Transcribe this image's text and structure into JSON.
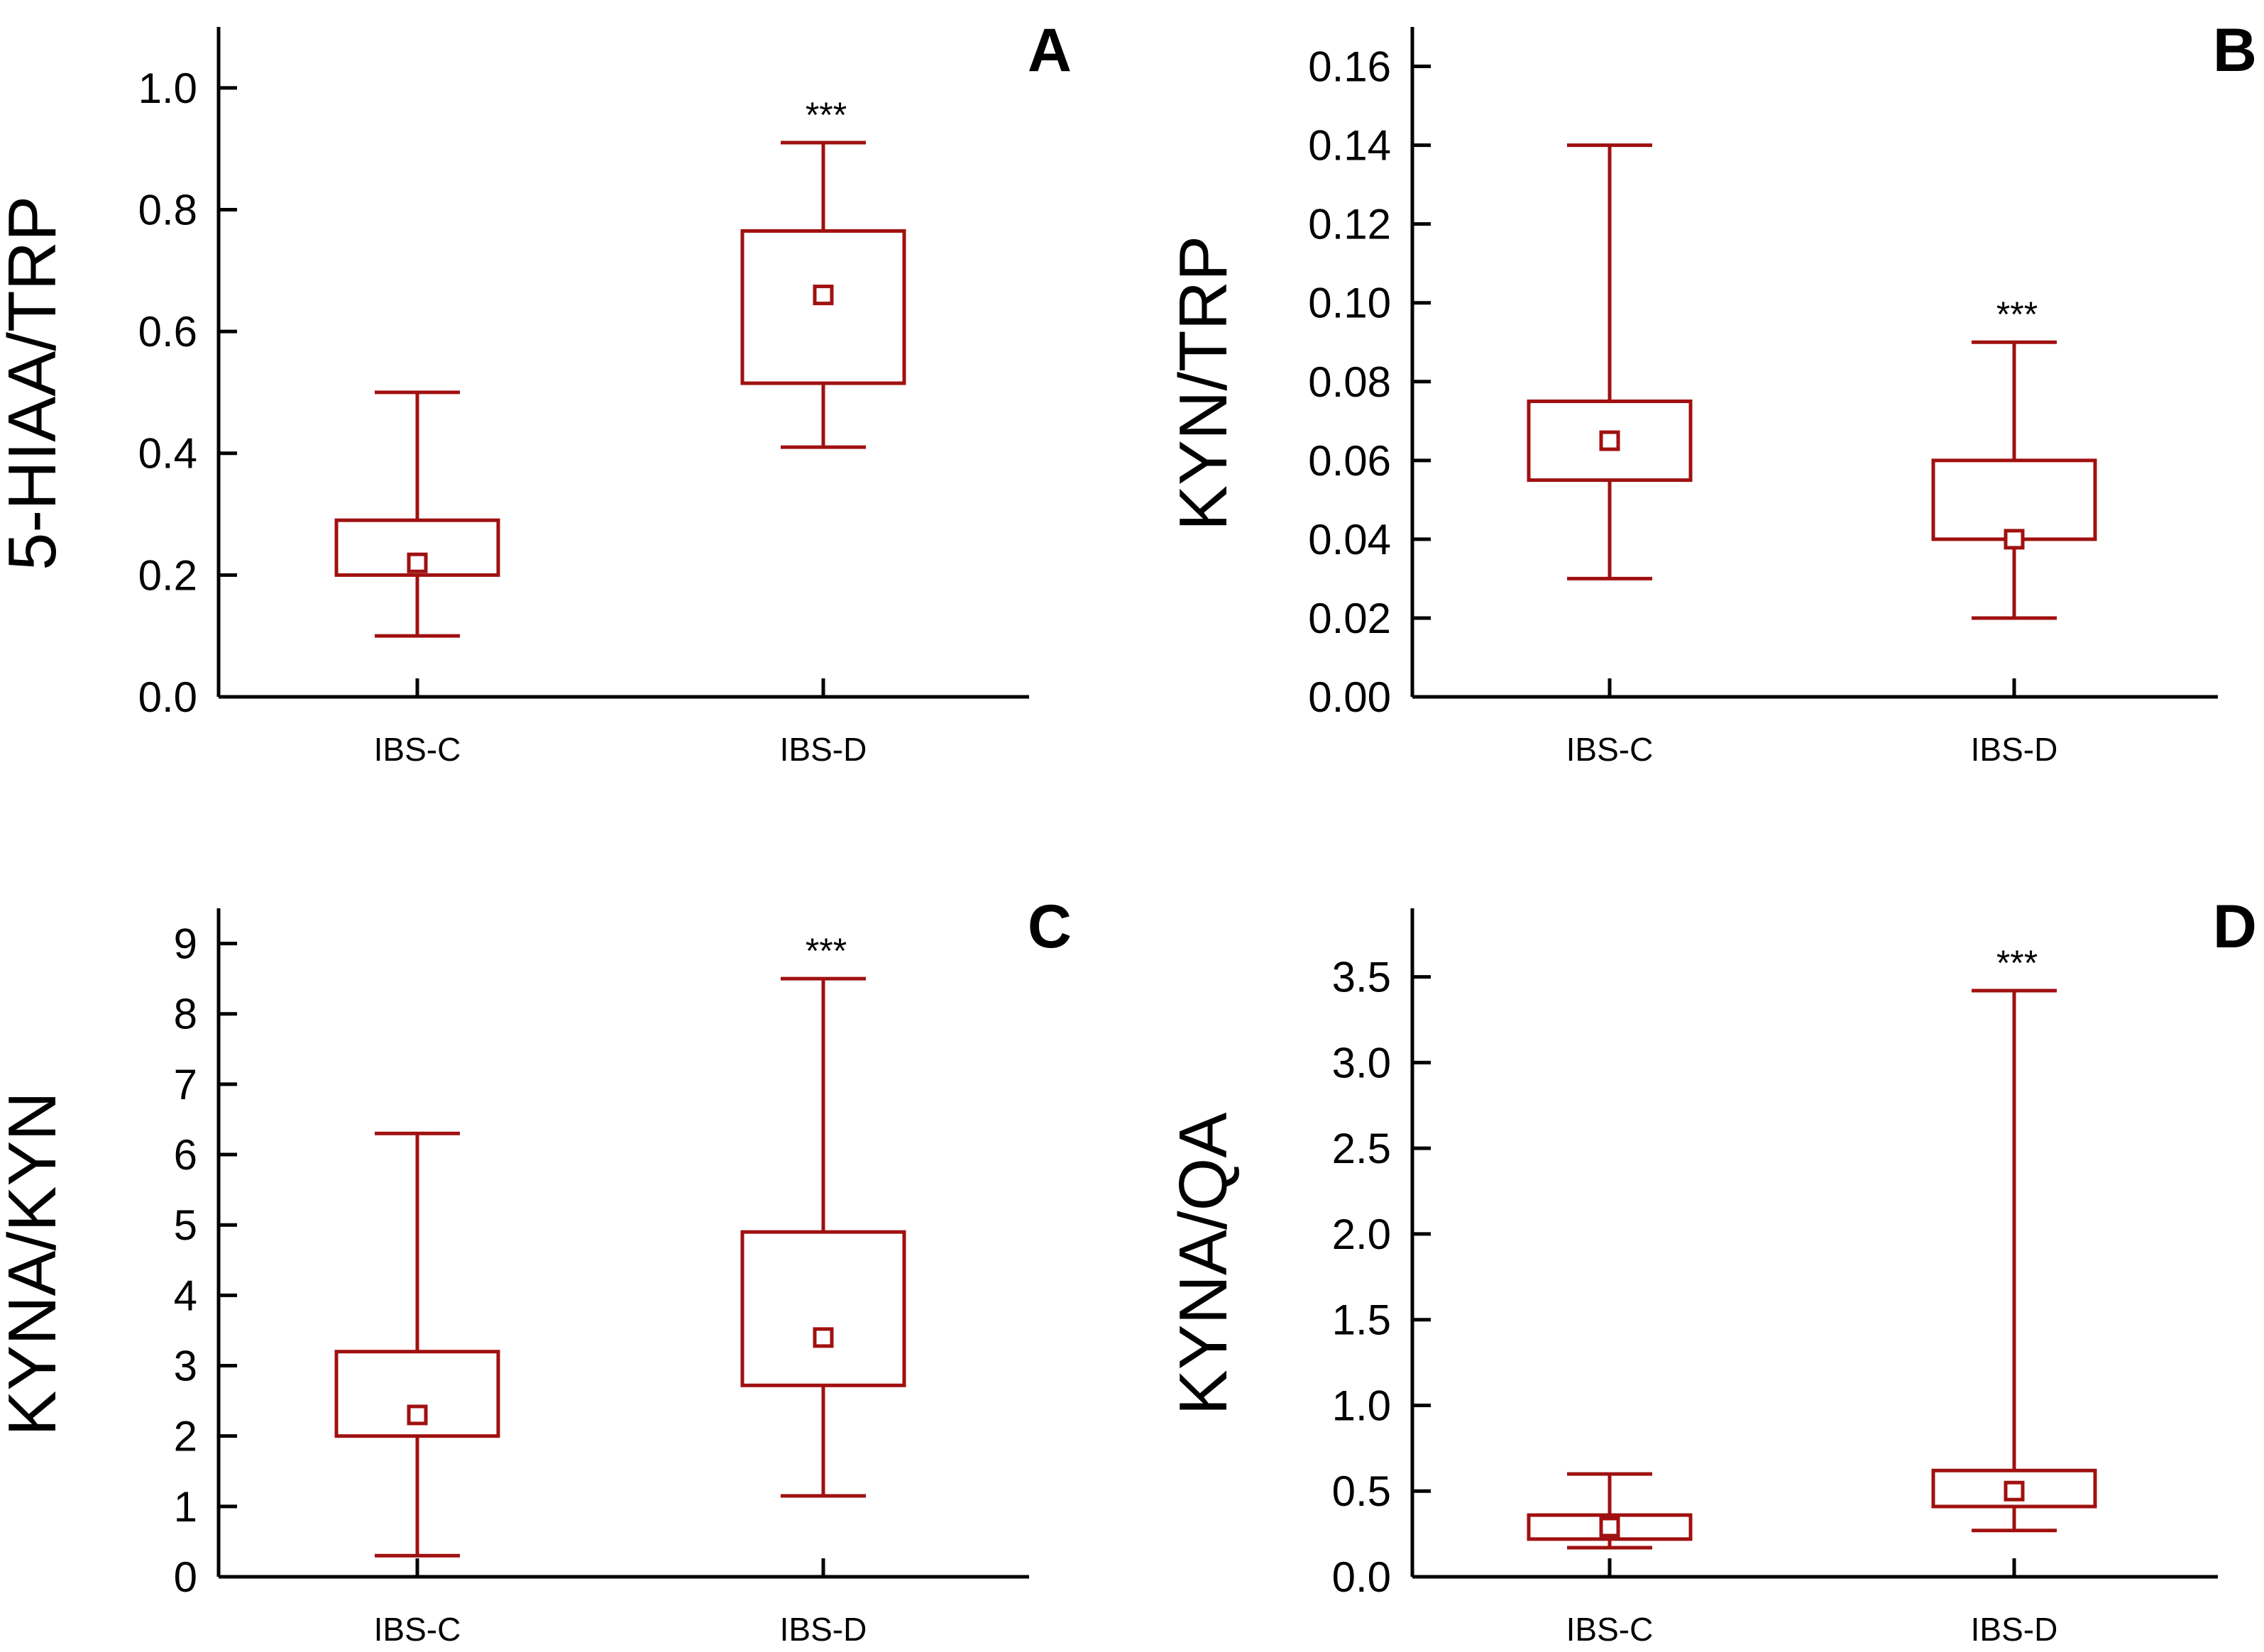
{
  "colors": {
    "box": "#a01010",
    "axis": "#000000",
    "background": "#ffffff"
  },
  "chart_data": [
    {
      "type": "box",
      "panel": "A",
      "ylabel": "5-HIAA/TRP",
      "ylim": [
        0,
        1.1
      ],
      "yticks": [
        0.0,
        0.2,
        0.4,
        0.6,
        0.8,
        1.0
      ],
      "ytick_labels": [
        "0.0",
        "0.2",
        "0.4",
        "0.6",
        "0.8",
        "1.0"
      ],
      "categories": [
        "IBS-C",
        "IBS-D"
      ],
      "boxes": [
        {
          "label": "IBS-C",
          "min": 0.1,
          "q1": 0.2,
          "median": 0.22,
          "q3": 0.29,
          "max": 0.5,
          "sig": ""
        },
        {
          "label": "IBS-D",
          "min": 0.41,
          "q1": 0.515,
          "median": 0.66,
          "q3": 0.765,
          "max": 0.91,
          "sig": "***"
        }
      ]
    },
    {
      "type": "box",
      "panel": "B",
      "ylabel": "KYN/TRP",
      "ylim": [
        0,
        0.17
      ],
      "yticks": [
        0.0,
        0.02,
        0.04,
        0.06,
        0.08,
        0.1,
        0.12,
        0.14,
        0.16
      ],
      "ytick_labels": [
        "0.00",
        "0.02",
        "0.04",
        "0.06",
        "0.08",
        "0.10",
        "0.12",
        "0.14",
        "0.16"
      ],
      "categories": [
        "IBS-C",
        "IBS-D"
      ],
      "boxes": [
        {
          "label": "IBS-C",
          "min": 0.03,
          "q1": 0.055,
          "median": 0.065,
          "q3": 0.075,
          "max": 0.14,
          "sig": ""
        },
        {
          "label": "IBS-D",
          "min": 0.02,
          "q1": 0.04,
          "median": 0.04,
          "q3": 0.06,
          "max": 0.09,
          "sig": "***"
        }
      ]
    },
    {
      "type": "box",
      "panel": "C",
      "ylabel": "KYNA/KYN",
      "ylim": [
        0,
        9.5
      ],
      "yticks": [
        0,
        1,
        2,
        3,
        4,
        5,
        6,
        7,
        8,
        9
      ],
      "ytick_labels": [
        "0",
        "1",
        "2",
        "3",
        "4",
        "5",
        "6",
        "7",
        "8",
        "9"
      ],
      "categories": [
        "IBS-C",
        "IBS-D"
      ],
      "boxes": [
        {
          "label": "IBS-C",
          "min": 0.3,
          "q1": 2.0,
          "median": 2.3,
          "q3": 3.2,
          "max": 6.3,
          "sig": ""
        },
        {
          "label": "IBS-D",
          "min": 1.15,
          "q1": 2.72,
          "median": 3.4,
          "q3": 4.9,
          "max": 8.5,
          "sig": "***"
        }
      ]
    },
    {
      "type": "box",
      "panel": "D",
      "ylabel": "KYNA/QA",
      "ylim": [
        0,
        3.9
      ],
      "yticks": [
        0.0,
        0.5,
        1.0,
        1.5,
        2.0,
        2.5,
        3.0,
        3.5
      ],
      "ytick_labels": [
        "0.0",
        "0.5",
        "1.0",
        "1.5",
        "2.0",
        "2.5",
        "3.0",
        "3.5"
      ],
      "categories": [
        "IBS-C",
        "IBS-D"
      ],
      "boxes": [
        {
          "label": "IBS-C",
          "min": 0.17,
          "q1": 0.22,
          "median": 0.29,
          "q3": 0.36,
          "max": 0.6,
          "sig": ""
        },
        {
          "label": "IBS-D",
          "min": 0.27,
          "q1": 0.41,
          "median": 0.5,
          "q3": 0.62,
          "max": 3.42,
          "sig": "***"
        }
      ]
    }
  ]
}
